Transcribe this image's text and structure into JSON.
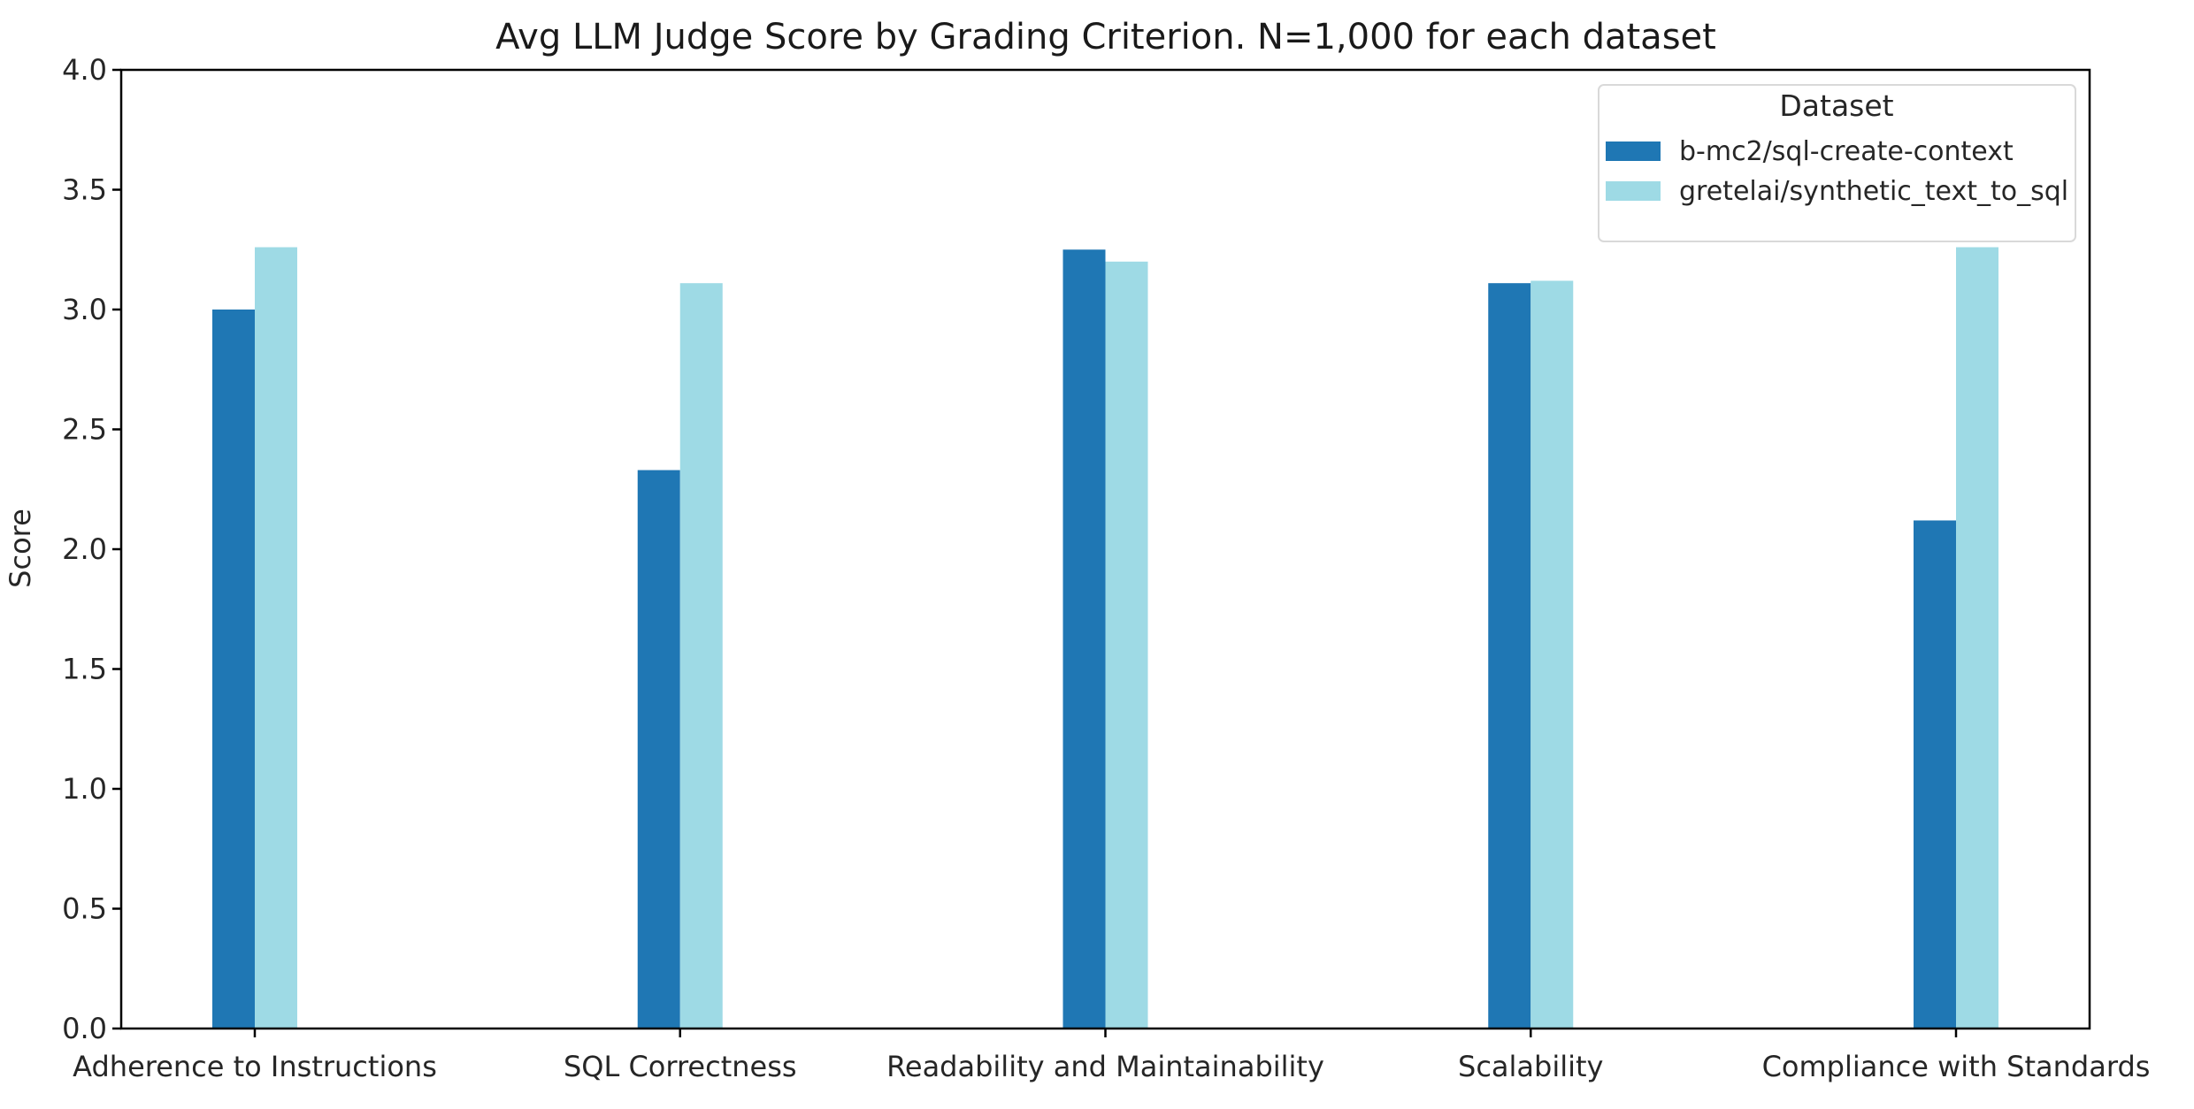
{
  "chart_data": {
    "type": "bar",
    "title": "Avg LLM Judge Score by Grading Criterion. N=1,000 for each dataset",
    "xlabel": "",
    "ylabel": "Score",
    "ylim": [
      0,
      4.0
    ],
    "yticks": [
      "0.0",
      "0.5",
      "1.0",
      "1.5",
      "2.0",
      "2.5",
      "3.0",
      "3.5",
      "4.0"
    ],
    "categories": [
      "Adherence to Instructions",
      "SQL Correctness",
      "Readability and Maintainability",
      "Scalability",
      "Compliance with Standards"
    ],
    "series": [
      {
        "name": "b-mc2/sql-create-context",
        "color": "#1f77b4",
        "values": [
          3.0,
          2.33,
          3.25,
          3.11,
          2.12
        ]
      },
      {
        "name": "gretelai/synthetic_text_to_sql",
        "color": "#9edae5",
        "values": [
          3.26,
          3.11,
          3.2,
          3.12,
          3.26
        ]
      }
    ],
    "legend": {
      "title": "Dataset",
      "position": "upper right"
    },
    "grid": false
  }
}
